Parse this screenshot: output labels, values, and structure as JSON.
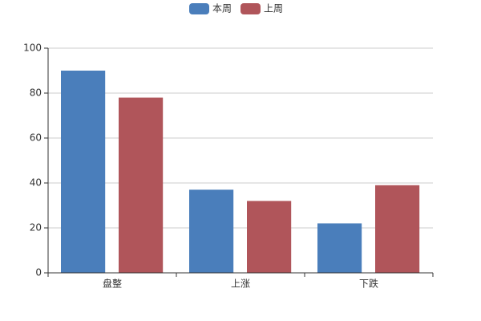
{
  "chart_data": {
    "type": "bar",
    "categories": [
      "盘整",
      "上涨",
      "下跌"
    ],
    "series": [
      {
        "name": "本周",
        "color": "#4a7ebb",
        "values": [
          90,
          37,
          22
        ]
      },
      {
        "name": "上周",
        "color": "#b0555a",
        "values": [
          78,
          32,
          39
        ]
      }
    ],
    "ylim": [
      0,
      100
    ],
    "yticks": [
      0,
      20,
      40,
      60,
      80,
      100
    ],
    "grid": true,
    "legend": "top"
  }
}
